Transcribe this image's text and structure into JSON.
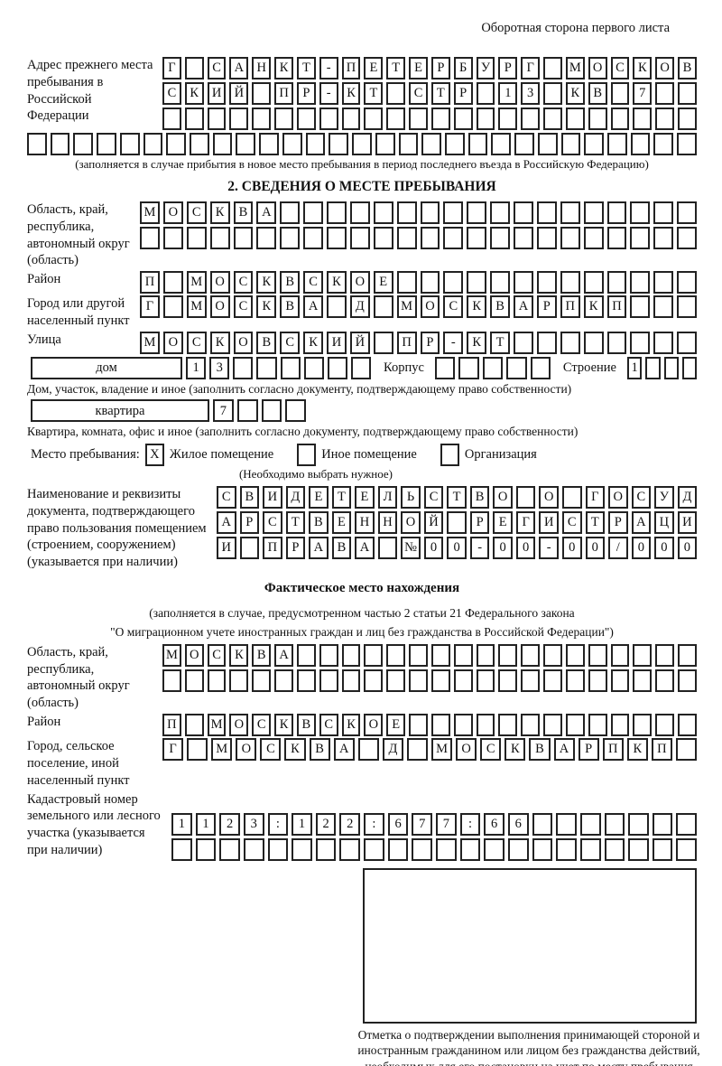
{
  "page": {
    "header_note": "Оборотная сторона первого листа"
  },
  "prev_address": {
    "label": "Адрес прежнего места пребывания в Российской Федерации",
    "rows": [
      {
        "chars": "Г САНКТ-ПЕТЕРБУРГ МОСКОВ",
        "len": 24
      },
      {
        "chars": "СКИЙ ПР-КТ СТР 13 КВ 7",
        "len": 24
      },
      {
        "chars": "",
        "len": 24
      },
      {
        "chars": "",
        "len": 29
      }
    ],
    "note": "(заполняется в случае прибытия в новое место пребывания в период последнего въезда в Российскую Федерацию)"
  },
  "section2": {
    "title": "2. СВЕДЕНИЯ О МЕСТЕ ПРЕБЫВАНИЯ",
    "region": {
      "label": "Область, край, республика, автономный округ (область)",
      "rows": [
        {
          "chars": "МОСКВА",
          "len": 24
        },
        {
          "chars": "",
          "len": 24
        }
      ]
    },
    "district": {
      "label": "Район",
      "row": {
        "chars": "П МОСКВСКОЕ",
        "len": 24
      }
    },
    "city": {
      "label": "Город или другой населенный пункт",
      "row": {
        "chars": "Г МОСКВА Д МОСКВАРПКП",
        "len": 24
      }
    },
    "street": {
      "label": "Улица",
      "row": {
        "chars": "МОСКОВСКИЙ ПР-КТ",
        "len": 24
      }
    },
    "house": {
      "box_label": "дом",
      "cells": {
        "chars": "13",
        "len": 8
      },
      "korpus_label": "Корпус",
      "korpus_cells": {
        "chars": "",
        "len": 5
      },
      "stroenie_label": "Строение",
      "stroenie_cells": {
        "chars": "1",
        "len": 4
      },
      "note": "Дом, участок, владение и иное (заполнить согласно документу, подтверждающему право собственности)"
    },
    "apartment": {
      "box_label": "квартира",
      "cells": {
        "chars": "7",
        "len": 4
      },
      "note": "Квартира, комната, офис и иное (заполнить согласно документу, подтверждающему право собственности)"
    },
    "stay_type": {
      "label": "Место пребывания:",
      "options": [
        {
          "checked": "X",
          "label": "Жилое помещение"
        },
        {
          "checked": "",
          "label": "Иное помещение"
        },
        {
          "checked": "",
          "label": "Организация"
        }
      ],
      "note": "(Необходимо выбрать нужное)"
    },
    "document": {
      "label": "Наименование и реквизиты документа, подтверждающего право пользования помещением (строением, сооружением) (указывается при наличии)",
      "rows": [
        {
          "chars": "СВИДЕТЕЛЬСТВО О ГОСУД",
          "len": 21
        },
        {
          "chars": "АРСТВЕННОЙ РЕГИСТРАЦИ",
          "len": 21
        },
        {
          "chars": "И ПРАВА №00-00-00/000",
          "len": 21
        }
      ]
    }
  },
  "actual": {
    "title": "Фактическое место нахождения",
    "note1": "(заполняется в случае, предусмотренном частью 2 статьи 21 Федерального закона",
    "note2": "\"О миграционном учете иностранных граждан и лиц без гражданства в Российской Федерации\")",
    "region": {
      "label": "Область, край, республика, автономный округ (область)",
      "rows": [
        {
          "chars": "МОСКВА",
          "len": 24
        },
        {
          "chars": "",
          "len": 24
        }
      ]
    },
    "district": {
      "label": "Район",
      "row": {
        "chars": "П МОСКВСКОЕ",
        "len": 24
      }
    },
    "city": {
      "label": "Город, сельское поселение, иной населенный пункт",
      "row": {
        "chars": "Г МОСКВА Д МОСКВАРПКП",
        "len": 22
      }
    },
    "cadastre": {
      "label": "Кадастровый номер земельного или лесного участка (указывается при наличии)",
      "rows": [
        {
          "chars": "1123:122:677:66",
          "len": 22
        },
        {
          "chars": "",
          "len": 22
        }
      ]
    }
  },
  "stamp": {
    "caption": "Отметка о подтверждении выполнения принимающей стороной и иностранным гражданином или лицом без гражданства действий, необходимых для его постановки на учет по месту пребывания"
  }
}
